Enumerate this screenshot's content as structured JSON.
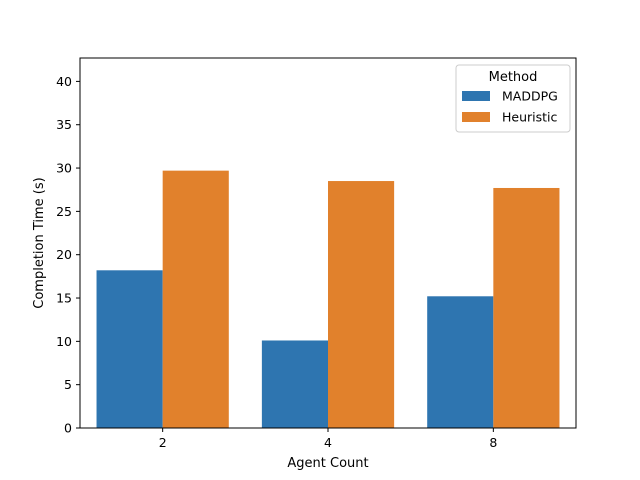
{
  "chart_data": {
    "type": "bar",
    "title": "",
    "xlabel": "Agent Count",
    "ylabel": "Completion Time (s)",
    "categories": [
      "2",
      "4",
      "8"
    ],
    "series": [
      {
        "name": "MADDPG",
        "color": "#2e75b0",
        "values": [
          18.2,
          10.1,
          15.2
        ]
      },
      {
        "name": "Heuristic",
        "color": "#e1812c",
        "values": [
          29.7,
          28.5,
          27.7
        ]
      }
    ],
    "ylim": [
      0,
      42.7
    ],
    "yticks": [
      0,
      5,
      10,
      15,
      20,
      25,
      30,
      35,
      40
    ],
    "grid": false,
    "legend": {
      "title": "Method",
      "placement": "top-right"
    }
  }
}
